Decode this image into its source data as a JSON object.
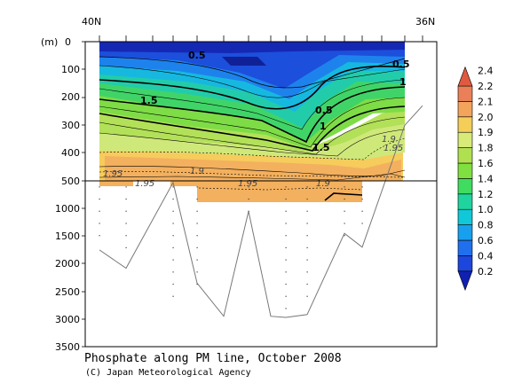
{
  "chart_data": {
    "type": "heatmap",
    "caption": "Phosphate along PM line, October 2008",
    "credit": "(C) Japan Meteorological Agency",
    "x_left_label": "40N",
    "x_right_label": "36N",
    "y_unit_label": "(m)",
    "y_ticks_upper": [
      "0",
      "100",
      "200",
      "300",
      "400",
      "500"
    ],
    "y_ticks_lower": [
      "1000",
      "1500",
      "2000",
      "2500",
      "3000",
      "3500"
    ],
    "colorbar_ticks": [
      "0.2",
      "0.4",
      "0.6",
      "0.8",
      "1.0",
      "1.2",
      "1.4",
      "1.6",
      "1.8",
      "1.9",
      "2.0",
      "2.1",
      "2.2",
      "2.4"
    ],
    "colorbar_colors": [
      "#1020b0",
      "#1c46dc",
      "#2070ee",
      "#18a0ee",
      "#10c8d8",
      "#20d4a0",
      "#40dc60",
      "#80e040",
      "#b0e050",
      "#d8ea78",
      "#f4ce58",
      "#f2a45c",
      "#ea8058",
      "#e05a40"
    ],
    "contour_labels": [
      {
        "text": "0.5",
        "style": "bold"
      },
      {
        "text": "0.5",
        "style": "bold"
      },
      {
        "text": "0.5",
        "style": "bold"
      },
      {
        "text": "1",
        "style": "bold"
      },
      {
        "text": "1",
        "style": "bold"
      },
      {
        "text": "1.5",
        "style": "bold"
      },
      {
        "text": "1.5",
        "style": "bold"
      },
      {
        "text": "1.9",
        "style": "thin"
      },
      {
        "text": "1.95",
        "style": "thin"
      },
      {
        "text": "1.95",
        "style": "thin"
      },
      {
        "text": "1.9",
        "style": "thin"
      },
      {
        "text": "1.95",
        "style": "thin"
      },
      {
        "text": "1.95",
        "style": "thin"
      },
      {
        "text": "1.9",
        "style": "thin"
      }
    ],
    "bottom_profile_depth_m": [
      1750,
      2080,
      530,
      2350,
      2950,
      1050,
      2950,
      2970,
      2920,
      1450,
      1700,
      300,
      230
    ],
    "ylim_upper": [
      0,
      500
    ],
    "ylim_lower": [
      500,
      3500
    ]
  }
}
